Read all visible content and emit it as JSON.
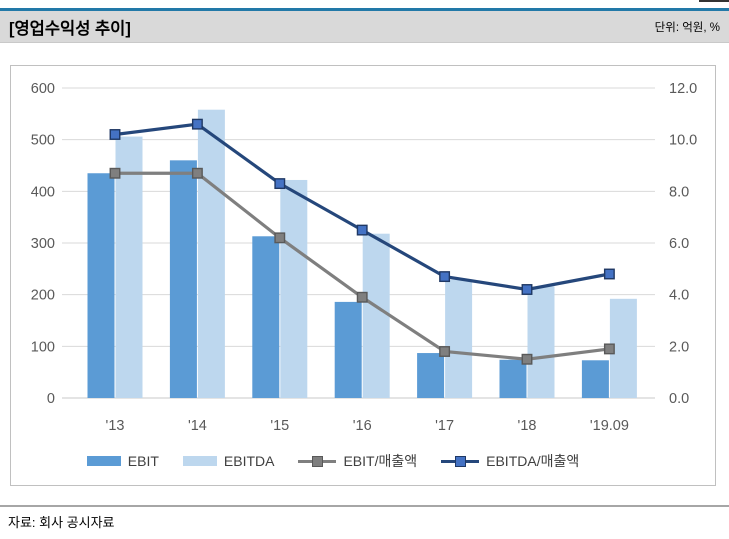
{
  "header": {
    "title": "[영업수익성 추이]",
    "unit_label": "단위: 억원, %"
  },
  "source": {
    "label": "자료: 회사 공시자료"
  },
  "colors": {
    "header_accent": "#2279A8",
    "header_band": "#D9D9D9",
    "gridline": "#D9D9D9",
    "axis_text": "#595959",
    "frame_border": "#C0C0C0"
  },
  "chart_data": {
    "type": "bar",
    "subtype": "combo-bar-line-dual-axis",
    "title": "",
    "categories": [
      "'13",
      "'14",
      "'15",
      "'16",
      "'17",
      "'18",
      "'19.09"
    ],
    "bar_series": [
      {
        "name": "EBIT",
        "color": "#5B9BD5",
        "axis": "left",
        "values": [
          435,
          460,
          313,
          186,
          87,
          74,
          73
        ]
      },
      {
        "name": "EBITDA",
        "color": "#BDD7EE",
        "axis": "left",
        "values": [
          506,
          558,
          422,
          318,
          229,
          216,
          192
        ]
      }
    ],
    "line_series": [
      {
        "name": "EBIT/매출액",
        "color": "#7F7F7F",
        "marker_fill": "#7F7F7F",
        "marker_border": "#595959",
        "axis": "right",
        "values": [
          8.7,
          8.7,
          6.2,
          3.9,
          1.8,
          1.5,
          1.9
        ]
      },
      {
        "name": "EBITDA/매출액",
        "color": "#25477B",
        "marker_fill": "#4472C4",
        "marker_border": "#1F3864",
        "axis": "right",
        "values": [
          10.2,
          10.6,
          8.3,
          6.5,
          4.7,
          4.2,
          4.8
        ]
      }
    ],
    "left_axis": {
      "min": 0,
      "max": 600,
      "step": 100,
      "ticks": [
        "0",
        "100",
        "200",
        "300",
        "400",
        "500",
        "600"
      ]
    },
    "right_axis": {
      "min": 0,
      "max": 12,
      "step": 2,
      "ticks": [
        "0.0",
        "2.0",
        "4.0",
        "6.0",
        "8.0",
        "10.0",
        "12.0"
      ]
    },
    "grid": true,
    "legend_position": "bottom"
  }
}
